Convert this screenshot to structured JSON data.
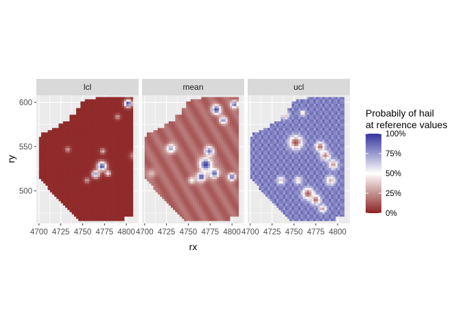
{
  "chart_data": {
    "type": "heatmap",
    "facets": [
      "lcl",
      "mean",
      "ucl"
    ],
    "xlabel": "rx",
    "ylabel": "ry",
    "x_ticks": [
      4700,
      4725,
      4750,
      4775,
      4800
    ],
    "x_tick_labels": [
      "4700",
      "4725",
      "4750",
      "4775",
      "4800"
    ],
    "y_ticks": [
      500,
      550,
      600
    ],
    "y_tick_labels": [
      "500",
      "550",
      "600"
    ],
    "xlim": [
      4697,
      4814
    ],
    "ylim": [
      463,
      608
    ],
    "grid": true,
    "legend": {
      "title_line1": "Probabily of hail",
      "title_line2": "at reference values",
      "position": "right",
      "breaks": [
        0,
        0.25,
        0.5,
        0.75,
        1.0
      ],
      "labels": [
        "0%",
        "25%",
        "50%",
        "75%",
        "100%"
      ],
      "colors": {
        "low": "#8b2222",
        "mid": "#ffffff",
        "high": "#35359e"
      }
    },
    "base_level": {
      "lcl": 0.02,
      "mean": 0.12,
      "ucl": 0.9
    },
    "hotspots": [
      {
        "facet": "lcl",
        "x": 4802,
        "y": 599,
        "r": 4,
        "value": 1.0
      },
      {
        "facet": "lcl",
        "x": 4772,
        "y": 528,
        "r": 5,
        "value": 0.95
      },
      {
        "facet": "lcl",
        "x": 4765,
        "y": 519,
        "r": 4,
        "value": 0.8
      },
      {
        "facet": "lcl",
        "x": 4779,
        "y": 520,
        "r": 3,
        "value": 0.55
      },
      {
        "facet": "lcl",
        "x": 4773,
        "y": 545,
        "r": 3,
        "value": 0.35
      },
      {
        "facet": "lcl",
        "x": 4790,
        "y": 584,
        "r": 3,
        "value": 0.3
      },
      {
        "facet": "lcl",
        "x": 4733,
        "y": 547,
        "r": 3,
        "value": 0.3
      },
      {
        "facet": "lcl",
        "x": 4755,
        "y": 512,
        "r": 3,
        "value": 0.3
      },
      {
        "facet": "lcl",
        "x": 4808,
        "y": 540,
        "r": 4,
        "value": 0.25
      },
      {
        "facet": "mean",
        "x": 4782,
        "y": 592,
        "r": 5,
        "value": 0.95
      },
      {
        "facet": "mean",
        "x": 4790,
        "y": 580,
        "r": 4,
        "value": 0.8
      },
      {
        "facet": "mean",
        "x": 4803,
        "y": 598,
        "r": 4,
        "value": 0.9
      },
      {
        "facet": "mean",
        "x": 4770,
        "y": 530,
        "r": 7,
        "value": 0.98
      },
      {
        "facet": "mean",
        "x": 4765,
        "y": 516,
        "r": 5,
        "value": 0.95
      },
      {
        "facet": "mean",
        "x": 4780,
        "y": 520,
        "r": 5,
        "value": 0.9
      },
      {
        "facet": "mean",
        "x": 4774,
        "y": 545,
        "r": 5,
        "value": 0.85
      },
      {
        "facet": "mean",
        "x": 4800,
        "y": 516,
        "r": 4,
        "value": 0.9
      },
      {
        "facet": "mean",
        "x": 4730,
        "y": 548,
        "r": 5,
        "value": 0.75
      },
      {
        "facet": "mean",
        "x": 4754,
        "y": 512,
        "r": 4,
        "value": 0.5
      },
      {
        "facet": "mean",
        "x": 4708,
        "y": 520,
        "r": 5,
        "value": 0.35
      },
      {
        "facet": "ucl",
        "x": 4752,
        "y": 555,
        "r": 7,
        "value": 0.1
      },
      {
        "facet": "ucl",
        "x": 4780,
        "y": 550,
        "r": 5,
        "value": 0.15
      },
      {
        "facet": "ucl",
        "x": 4786,
        "y": 540,
        "r": 5,
        "value": 0.2
      },
      {
        "facet": "ucl",
        "x": 4795,
        "y": 530,
        "r": 5,
        "value": 0.25
      },
      {
        "facet": "ucl",
        "x": 4792,
        "y": 512,
        "r": 5,
        "value": 0.3
      },
      {
        "facet": "ucl",
        "x": 4766,
        "y": 497,
        "r": 6,
        "value": 0.12
      },
      {
        "facet": "ucl",
        "x": 4775,
        "y": 490,
        "r": 5,
        "value": 0.15
      },
      {
        "facet": "ucl",
        "x": 4783,
        "y": 480,
        "r": 4,
        "value": 0.25
      },
      {
        "facet": "ucl",
        "x": 4755,
        "y": 512,
        "r": 4,
        "value": 0.4
      },
      {
        "facet": "ucl",
        "x": 4735,
        "y": 512,
        "r": 4,
        "value": 0.35
      },
      {
        "facet": "ucl",
        "x": 4740,
        "y": 586,
        "r": 4,
        "value": 0.3
      },
      {
        "facet": "ucl",
        "x": 4760,
        "y": 588,
        "r": 3,
        "value": 0.35
      }
    ]
  }
}
